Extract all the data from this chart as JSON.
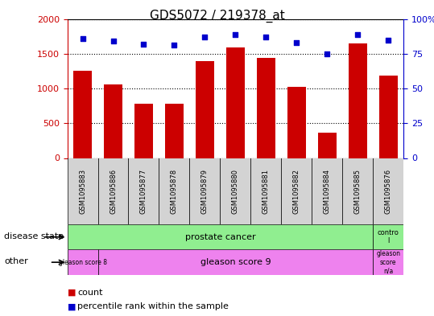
{
  "title": "GDS5072 / 219378_at",
  "samples": [
    "GSM1095883",
    "GSM1095886",
    "GSM1095877",
    "GSM1095878",
    "GSM1095879",
    "GSM1095880",
    "GSM1095881",
    "GSM1095882",
    "GSM1095884",
    "GSM1095885",
    "GSM1095876"
  ],
  "counts": [
    1260,
    1060,
    775,
    775,
    1390,
    1590,
    1445,
    1020,
    360,
    1650,
    1185
  ],
  "percentile_ranks": [
    86,
    84,
    82,
    81,
    87,
    89,
    87,
    83,
    75,
    89,
    85
  ],
  "ylim_left": [
    0,
    2000
  ],
  "ylim_right": [
    0,
    100
  ],
  "yticks_left": [
    0,
    500,
    1000,
    1500,
    2000
  ],
  "yticks_right": [
    0,
    25,
    50,
    75,
    100
  ],
  "bar_color": "#cc0000",
  "dot_color": "#0000cc",
  "label_gray": "#d3d3d3",
  "green_color": "#90ee90",
  "magenta_color": "#ee82ee",
  "tick_fontsize": 8,
  "label_fontsize": 8,
  "title_fontsize": 11,
  "legend_fontsize": 8,
  "sample_fontsize": 6,
  "annot_fontsize": 8
}
